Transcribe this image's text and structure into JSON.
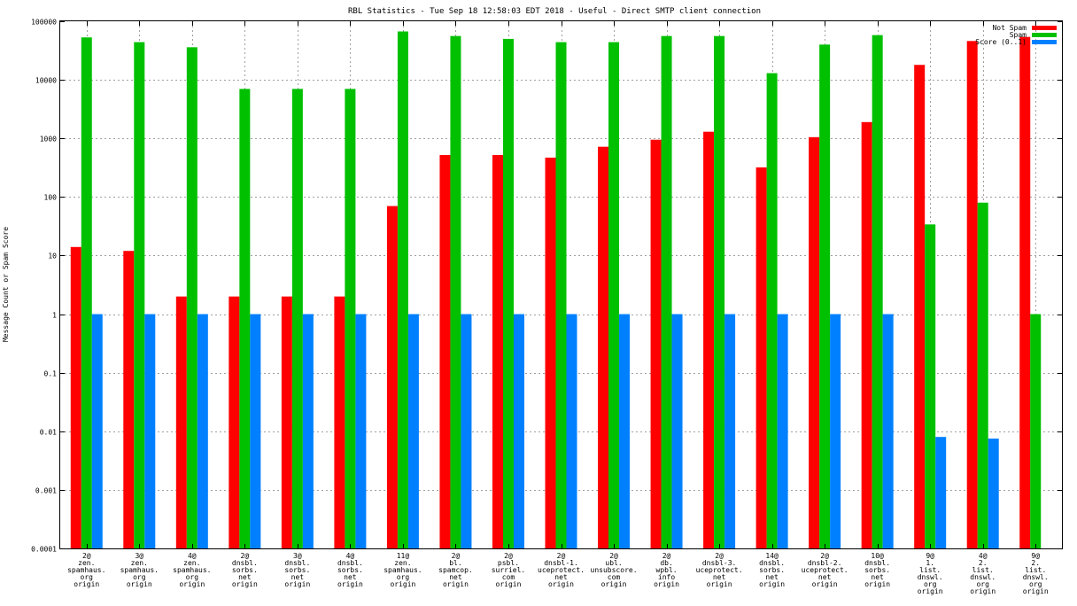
{
  "chart_data": {
    "type": "bar",
    "title": "RBL Statistics - Tue Sep 18 12:58:03 EDT 2018 - Useful - Direct SMTP client connection",
    "xlabel": "",
    "ylabel": "Message Count or Spam Score",
    "yscale": "log",
    "ylim": [
      0.0001,
      100000
    ],
    "yticks": [
      "0.0001",
      "0.001",
      "0.01",
      "0.1",
      "1",
      "10",
      "100",
      "1000",
      "10000",
      "100000"
    ],
    "grid": true,
    "legend_position": "top-right",
    "categories": [
      [
        "2@",
        "zen.",
        "spamhaus.",
        "org",
        "origin"
      ],
      [
        "3@",
        "zen.",
        "spamhaus.",
        "org",
        "origin"
      ],
      [
        "4@",
        "zen.",
        "spamhaus.",
        "org",
        "origin"
      ],
      [
        "2@",
        "dnsbl.",
        "sorbs.",
        "net",
        "origin"
      ],
      [
        "3@",
        "dnsbl.",
        "sorbs.",
        "net",
        "origin"
      ],
      [
        "4@",
        "dnsbl.",
        "sorbs.",
        "net",
        "origin"
      ],
      [
        "11@",
        "zen.",
        "spamhaus.",
        "org",
        "origin"
      ],
      [
        "2@",
        "bl.",
        "spamcop.",
        "net",
        "origin"
      ],
      [
        "2@",
        "psbl.",
        "surriel.",
        "com",
        "origin"
      ],
      [
        "2@",
        "dnsbl-1.",
        "uceprotect.",
        "net",
        "origin"
      ],
      [
        "2@",
        "ubl.",
        "unsubscore.",
        "com",
        "origin"
      ],
      [
        "2@",
        "db.",
        "wpbl.",
        "info",
        "origin"
      ],
      [
        "2@",
        "dnsbl-3.",
        "uceprotect.",
        "net",
        "origin"
      ],
      [
        "14@",
        "dnsbl.",
        "sorbs.",
        "net",
        "origin"
      ],
      [
        "2@",
        "dnsbl-2.",
        "uceprotect.",
        "net",
        "origin"
      ],
      [
        "10@",
        "dnsbl.",
        "sorbs.",
        "net",
        "origin"
      ],
      [
        "9@",
        "1.",
        "list.",
        "dnswl.",
        "org",
        "origin"
      ],
      [
        "4@",
        "2.",
        "list.",
        "dnswl.",
        "org",
        "origin"
      ],
      [
        "9@",
        "2.",
        "list.",
        "dnswl.",
        "org",
        "origin"
      ]
    ],
    "series": [
      {
        "name": "Not Spam",
        "color": "#ff0000",
        "values": [
          14,
          12,
          2,
          2,
          2,
          2,
          70,
          520,
          520,
          470,
          720,
          950,
          1300,
          320,
          1050,
          1900,
          18000,
          46000,
          54000
        ]
      },
      {
        "name": "Spam",
        "color": "#00c000",
        "values": [
          53000,
          44000,
          36000,
          7000,
          7000,
          7000,
          67000,
          56000,
          50000,
          44000,
          44000,
          56000,
          56000,
          13000,
          40000,
          58000,
          34,
          80,
          1
        ]
      },
      {
        "name": "Score (0..1)",
        "color": "#0080ff",
        "values": [
          1,
          1,
          1,
          1,
          1,
          1,
          1,
          1,
          1,
          1,
          1,
          1,
          1,
          1,
          1,
          1,
          0.008,
          0.0075,
          null
        ]
      }
    ]
  }
}
